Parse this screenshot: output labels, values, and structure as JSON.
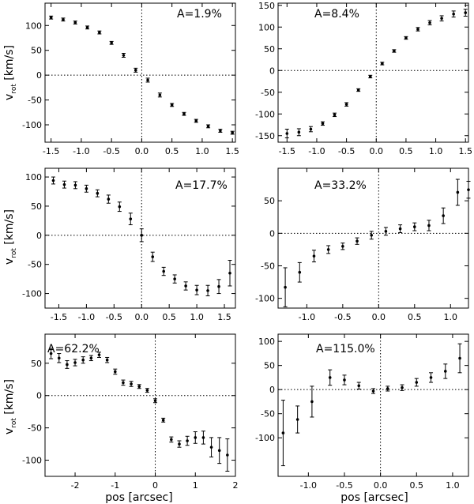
{
  "figure": {
    "xlabel": "pos [arcsec]",
    "ylabel_main": "v",
    "ylabel_sub": "rot",
    "ylabel_unit": " [km/s]"
  },
  "chart_data": [
    {
      "type": "scatter",
      "annotation": "A=1.9%",
      "xlim": [
        -1.6,
        1.55
      ],
      "ylim": [
        -135,
        145
      ],
      "xticks": [
        -1.5,
        -1.0,
        -0.5,
        0.0,
        0.5,
        1.0,
        1.5
      ],
      "xtick_labels": [
        "-1.5",
        "-1.0",
        "-0.5",
        "0.0",
        "0.5",
        "1.0",
        "1.5"
      ],
      "yticks": [
        -100,
        -50,
        0,
        50,
        100
      ],
      "ytick_labels": [
        "-100",
        "-50",
        "0",
        "50",
        "100"
      ],
      "x": [
        -1.5,
        -1.3,
        -1.1,
        -0.9,
        -0.7,
        -0.5,
        -0.3,
        -0.1,
        0.1,
        0.3,
        0.5,
        0.7,
        0.9,
        1.1,
        1.3,
        1.5
      ],
      "y": [
        116,
        112,
        106,
        96,
        86,
        65,
        40,
        10,
        -10,
        -40,
        -60,
        -78,
        -92,
        -103,
        -112,
        -116
      ],
      "yerr": [
        3,
        3,
        3,
        3,
        3,
        3,
        4,
        4,
        4,
        4,
        3,
        3,
        3,
        3,
        3,
        3
      ]
    },
    {
      "type": "scatter",
      "annotation": "A=8.4%",
      "xlim": [
        -1.65,
        1.55
      ],
      "ylim": [
        -165,
        155
      ],
      "xticks": [
        -1.5,
        -1.0,
        -0.5,
        0.0,
        0.5,
        1.0,
        1.5
      ],
      "xtick_labels": [
        "-1.5",
        "-1.0",
        "-0.5",
        "0.0",
        "0.5",
        "1.0",
        "1.5"
      ],
      "yticks": [
        -150,
        -100,
        -50,
        0,
        50,
        100,
        150
      ],
      "ytick_labels": [
        "-150",
        "-100",
        "-50",
        "0",
        "50",
        "100",
        "150"
      ],
      "x": [
        -1.5,
        -1.3,
        -1.1,
        -0.9,
        -0.7,
        -0.5,
        -0.3,
        -0.1,
        0.1,
        0.3,
        0.5,
        0.7,
        0.9,
        1.1,
        1.3,
        1.5
      ],
      "y": [
        -145,
        -142,
        -135,
        -122,
        -102,
        -78,
        -45,
        -14,
        16,
        45,
        75,
        95,
        110,
        120,
        130,
        133
      ],
      "yerr": [
        10,
        8,
        6,
        4,
        4,
        4,
        3,
        3,
        3,
        3,
        3,
        4,
        5,
        6,
        7,
        8
      ]
    },
    {
      "type": "scatter",
      "annotation": "A=17.7%",
      "xlim": [
        -1.75,
        1.7
      ],
      "ylim": [
        -125,
        115
      ],
      "xticks": [
        -1.5,
        -1.0,
        -0.5,
        0.0,
        0.5,
        1.0,
        1.5
      ],
      "xtick_labels": [
        "-1.5",
        "-1.0",
        "-0.5",
        "0.0",
        "0.5",
        "1.0",
        "1.5"
      ],
      "yticks": [
        -100,
        -50,
        0,
        50,
        100
      ],
      "ytick_labels": [
        "-100",
        "-50",
        "0",
        "50",
        "100"
      ],
      "x": [
        -1.6,
        -1.4,
        -1.2,
        -1.0,
        -0.8,
        -0.6,
        -0.4,
        -0.2,
        0.0,
        0.2,
        0.4,
        0.6,
        0.8,
        1.0,
        1.2,
        1.4,
        1.6
      ],
      "y": [
        94,
        87,
        86,
        80,
        72,
        62,
        49,
        28,
        0,
        -37,
        -62,
        -75,
        -87,
        -94,
        -95,
        -88,
        -65
      ],
      "yerr": [
        6,
        6,
        6,
        6,
        6,
        7,
        8,
        10,
        11,
        8,
        7,
        7,
        7,
        8,
        9,
        12,
        22
      ]
    },
    {
      "type": "scatter",
      "annotation": "A=33.2%",
      "xlim": [
        -1.4,
        1.25
      ],
      "ylim": [
        -115,
        100
      ],
      "xticks": [
        -1.0,
        -0.5,
        0.0,
        0.5,
        1.0
      ],
      "xtick_labels": [
        "-1.0",
        "-0.5",
        "0.0",
        "0.5",
        "1.0"
      ],
      "yticks": [
        -100,
        -50,
        0,
        50
      ],
      "ytick_labels": [
        "-100",
        "-50",
        "0",
        "50"
      ],
      "x": [
        -1.3,
        -1.1,
        -0.9,
        -0.7,
        -0.5,
        -0.3,
        -0.1,
        0.1,
        0.3,
        0.5,
        0.7,
        0.9,
        1.1,
        1.25
      ],
      "y": [
        -83,
        -60,
        -35,
        -25,
        -20,
        -12,
        -3,
        3,
        7,
        10,
        12,
        27,
        63,
        67
      ],
      "yerr": [
        30,
        15,
        9,
        6,
        5,
        5,
        6,
        6,
        6,
        6,
        8,
        12,
        20,
        13
      ]
    },
    {
      "type": "scatter",
      "annotation": "A=62.2%",
      "xlim": [
        -2.75,
        2.0
      ],
      "ylim": [
        -125,
        95
      ],
      "xticks": [
        -2,
        -1,
        0,
        1,
        2
      ],
      "xtick_labels": [
        "-2",
        "-1",
        "0",
        "1",
        "2"
      ],
      "yticks": [
        -100,
        -50,
        0,
        50
      ],
      "ytick_labels": [
        "-100",
        "-50",
        "0",
        "50"
      ],
      "x": [
        -2.6,
        -2.4,
        -2.2,
        -2.0,
        -1.8,
        -1.6,
        -1.4,
        -1.2,
        -1.0,
        -0.8,
        -0.6,
        -0.4,
        -0.2,
        0.0,
        0.2,
        0.4,
        0.6,
        0.8,
        1.0,
        1.2,
        1.4,
        1.6,
        1.8
      ],
      "y": [
        65,
        58,
        48,
        51,
        55,
        58,
        63,
        55,
        37,
        20,
        18,
        14,
        8,
        -8,
        -38,
        -68,
        -75,
        -70,
        -65,
        -65,
        -80,
        -85,
        -92
      ],
      "yerr": [
        8,
        7,
        6,
        5,
        5,
        4,
        4,
        4,
        4,
        4,
        4,
        3,
        3,
        3,
        3,
        4,
        5,
        7,
        9,
        10,
        15,
        20,
        25
      ]
    },
    {
      "type": "scatter",
      "annotation": "A=115.0%",
      "xlim": [
        -1.42,
        1.22
      ],
      "ylim": [
        -180,
        115
      ],
      "xticks": [
        -1.0,
        -0.5,
        0.0,
        0.5,
        1.0
      ],
      "xtick_labels": [
        "-1.0",
        "-0.5",
        "0.0",
        "0.5",
        "1.0"
      ],
      "yticks": [
        -100,
        -50,
        0,
        50,
        100
      ],
      "ytick_labels": [
        "-100",
        "-50",
        "0",
        "50",
        "100"
      ],
      "x": [
        -1.35,
        -1.15,
        -0.95,
        -0.7,
        -0.5,
        -0.3,
        -0.1,
        0.1,
        0.3,
        0.5,
        0.7,
        0.9,
        1.1
      ],
      "y": [
        -90,
        -62,
        -25,
        25,
        20,
        8,
        -3,
        2,
        4,
        15,
        25,
        38,
        65
      ],
      "yerr": [
        68,
        28,
        32,
        16,
        10,
        7,
        5,
        5,
        6,
        8,
        10,
        15,
        30
      ]
    }
  ]
}
